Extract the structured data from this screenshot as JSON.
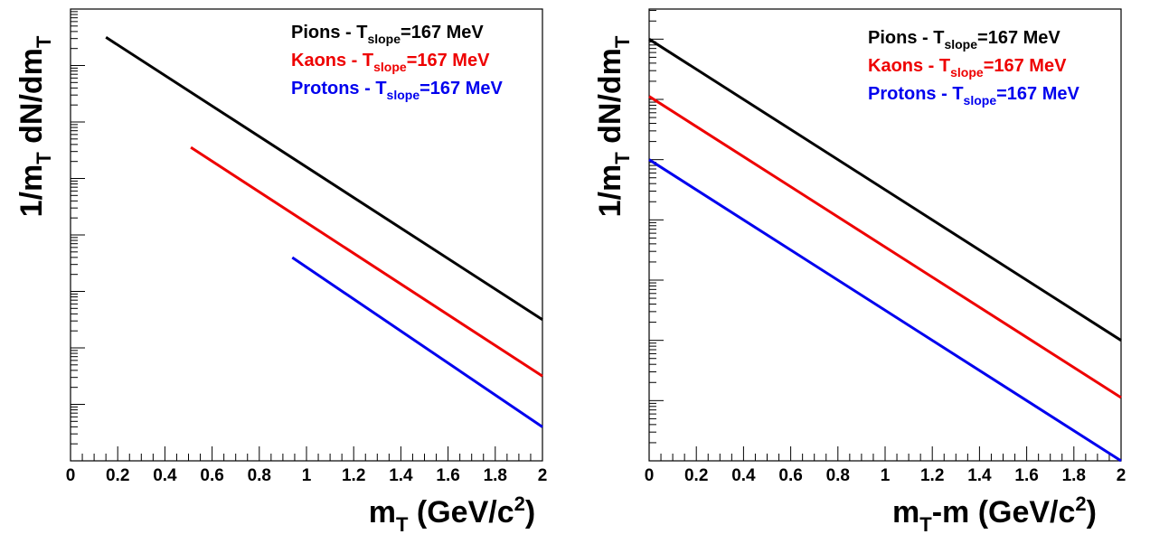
{
  "chart_data": [
    {
      "type": "line",
      "xlabel": "m_T (GeV/c^2)",
      "xlabel_parts": {
        "main": "m",
        "sub": "T",
        "rest": " (GeV/c",
        "sup": "2",
        "close": ")"
      },
      "ylabel": "1/m_T dN/dm_T",
      "ylabel_parts": {
        "a": "1/m",
        "a_sub": "T",
        "b": " dN/dm",
        "b_sub": "T"
      },
      "xlim": [
        0,
        2
      ],
      "ylim_log_decades": [
        0,
        8
      ],
      "y_scale": "log",
      "x_tick_labels": [
        "0",
        "0.2",
        "0.4",
        "0.6",
        "0.8",
        "1",
        "1.2",
        "1.4",
        "1.6",
        "1.8",
        "2"
      ],
      "x_tick_values": [
        0,
        0.2,
        0.4,
        0.6,
        0.8,
        1,
        1.2,
        1.4,
        1.6,
        1.8,
        2
      ],
      "legend_position": "top-right",
      "series": [
        {
          "name": "Pions - T_slope=167 MeV",
          "label_main": "Pions - T",
          "label_sub": "slope",
          "label_end": "=167 MeV",
          "color": "#000000",
          "x": [
            0.15,
            2.0
          ],
          "y_log_decades": [
            7.5,
            2.5
          ]
        },
        {
          "name": "Kaons - T_slope=167 MeV",
          "label_main": "Kaons - T",
          "label_sub": "slope",
          "label_end": "=167 MeV",
          "color": "#ee0000",
          "x": [
            0.51,
            2.0
          ],
          "y_log_decades": [
            5.55,
            1.5
          ]
        },
        {
          "name": "Protons - T_slope=167 MeV",
          "label_main": "Protons - T",
          "label_sub": "slope",
          "label_end": "=167 MeV",
          "color": "#0000ee",
          "x": [
            0.94,
            2.0
          ],
          "y_log_decades": [
            3.6,
            0.6
          ]
        }
      ]
    },
    {
      "type": "line",
      "xlabel": "m_T-m (GeV/c^2)",
      "xlabel_parts": {
        "main": "m",
        "sub": "T",
        "rest": "-m (GeV/c",
        "sup": "2",
        "close": ")"
      },
      "ylabel": "1/m_T dN/dm_T",
      "ylabel_parts": {
        "a": "1/m",
        "a_sub": "T",
        "b": " dN/dm",
        "b_sub": "T"
      },
      "xlim": [
        0,
        2
      ],
      "ylim_log_decades": [
        0,
        7.5
      ],
      "y_scale": "log",
      "x_tick_labels": [
        "0",
        "0.2",
        "0.4",
        "0.6",
        "0.8",
        "1",
        "1.2",
        "1.4",
        "1.6",
        "1.8",
        "2"
      ],
      "x_tick_values": [
        0,
        0.2,
        0.4,
        0.6,
        0.8,
        1,
        1.2,
        1.4,
        1.6,
        1.8,
        2
      ],
      "legend_position": "top-right",
      "series": [
        {
          "name": "Pions - T_slope=167 MeV",
          "label_main": "Pions - T",
          "label_sub": "slope",
          "label_end": "=167 MeV",
          "color": "#000000",
          "x": [
            0.0,
            2.0
          ],
          "y_log_decades": [
            7.0,
            2.0
          ]
        },
        {
          "name": "Kaons - T_slope=167 MeV",
          "label_main": "Kaons - T",
          "label_sub": "slope",
          "label_end": "=167 MeV",
          "color": "#ee0000",
          "x": [
            0.0,
            2.0
          ],
          "y_log_decades": [
            6.05,
            1.05
          ]
        },
        {
          "name": "Protons - T_slope=167 MeV",
          "label_main": "Protons - T",
          "label_sub": "slope",
          "label_end": "=167 MeV",
          "color": "#0000ee",
          "x": [
            0.0,
            2.0
          ],
          "y_log_decades": [
            5.0,
            0.0
          ]
        }
      ]
    }
  ]
}
